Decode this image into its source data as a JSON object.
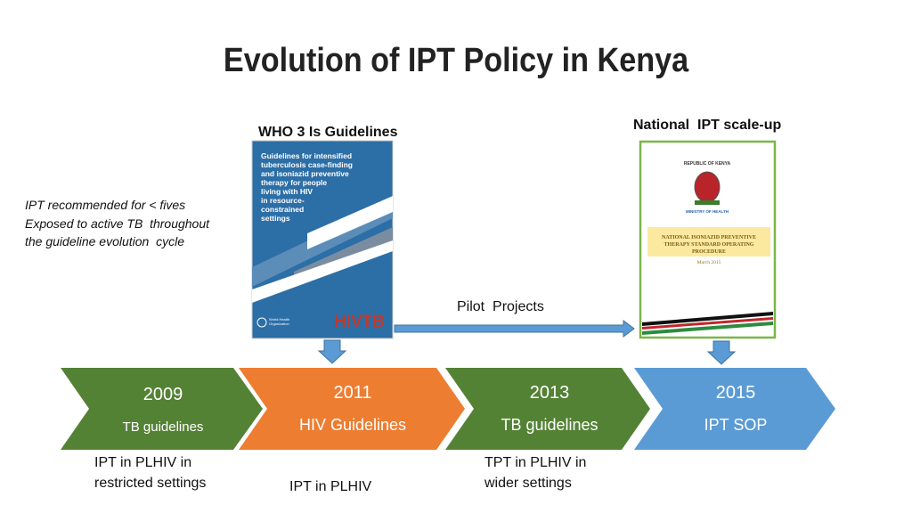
{
  "title": "Evolution of IPT Policy in Kenya",
  "who_label": "WHO 3 Is Guidelines",
  "national_label": "National  IPT scale-up",
  "note": [
    "IPT recommended for < fives",
    "Exposed to active TB  throughout",
    "the guideline evolution  cycle"
  ],
  "pilot": "Pilot  Projects",
  "who_cover": {
    "lines": [
      "Guidelines for intensified",
      "tuberculosis case-finding",
      "and isoniazid preventive",
      "therapy for people",
      "living with HIV",
      "in resource-",
      "constrained",
      "settings"
    ],
    "org": [
      "World Health",
      "Organization"
    ],
    "logo": "HIVTB"
  },
  "kenya_cover": {
    "header": "REPUBLIC OF KENYA",
    "ministry": "MINISTRY OF HEALTH",
    "lines": [
      "NATIONAL ISONIAZID PREVENTIVE",
      "THERAPY STANDARD OPERATING",
      "PROCEDURE"
    ],
    "date": "March 2015"
  },
  "timeline": [
    {
      "year": "2009",
      "label": "TB guidelines"
    },
    {
      "year": "2011",
      "label": "HIV Guidelines"
    },
    {
      "year": "2013",
      "label": "TB guidelines"
    },
    {
      "year": "2015",
      "label": "IPT SOP"
    }
  ],
  "notes_below": [
    [
      "IPT in PLHIV in",
      "restricted settings"
    ],
    [
      "IPT in PLHIV"
    ],
    [
      "TPT in PLHIV in",
      "wider settings"
    ]
  ]
}
